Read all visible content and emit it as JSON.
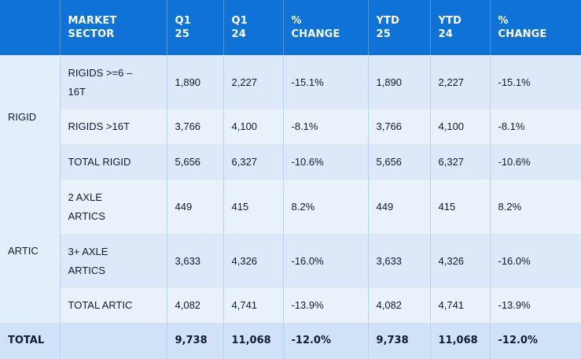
{
  "headers": {
    "blank": "",
    "market_sector": "MARKET\nSECTOR",
    "q1_25": "Q1\n25",
    "q1_24": "Q1\n24",
    "pct_change_q": "%\nCHANGE",
    "ytd_25": "YTD\n25",
    "ytd_24": "YTD\n24",
    "pct_change_ytd": "%\nCHANGE"
  },
  "groups": {
    "rigid": "RIGID",
    "artic": "ARTIC"
  },
  "rows": [
    {
      "label": "RIGIDS >=6 –\n16T",
      "q1_25": "1,890",
      "q1_24": "2,227",
      "pct_q": "-15.1%",
      "ytd_25": "1,890",
      "ytd_24": "2,227",
      "pct_ytd": "-15.1%"
    },
    {
      "label": "RIGIDS >16T",
      "q1_25": "3,766",
      "q1_24": "4,100",
      "pct_q": "-8.1%",
      "ytd_25": "3,766",
      "ytd_24": "4,100",
      "pct_ytd": "-8.1%"
    },
    {
      "label": "TOTAL RIGID",
      "q1_25": "5,656",
      "q1_24": "6,327",
      "pct_q": "-10.6%",
      "ytd_25": "5,656",
      "ytd_24": "6,327",
      "pct_ytd": "-10.6%"
    },
    {
      "label": "2 AXLE\nARTICS",
      "q1_25": "449",
      "q1_24": "415",
      "pct_q": "8.2%",
      "ytd_25": "449",
      "ytd_24": "415",
      "pct_ytd": "8.2%"
    },
    {
      "label": "3+ AXLE\nARTICS",
      "q1_25": "3,633",
      "q1_24": "4,326",
      "pct_q": "-16.0%",
      "ytd_25": "3,633",
      "ytd_24": "4,326",
      "pct_ytd": "-16.0%"
    },
    {
      "label": "TOTAL ARTIC",
      "q1_25": "4,082",
      "q1_24": "4,741",
      "pct_q": "-13.9%",
      "ytd_25": "4,082",
      "ytd_24": "4,741",
      "pct_ytd": "-13.9%"
    }
  ],
  "total": {
    "label": "TOTAL",
    "q1_25": "9,738",
    "q1_24": "11,068",
    "pct_q": "-12.0%",
    "ytd_25": "9,738",
    "ytd_24": "11,068",
    "pct_ytd": "-12.0%"
  }
}
